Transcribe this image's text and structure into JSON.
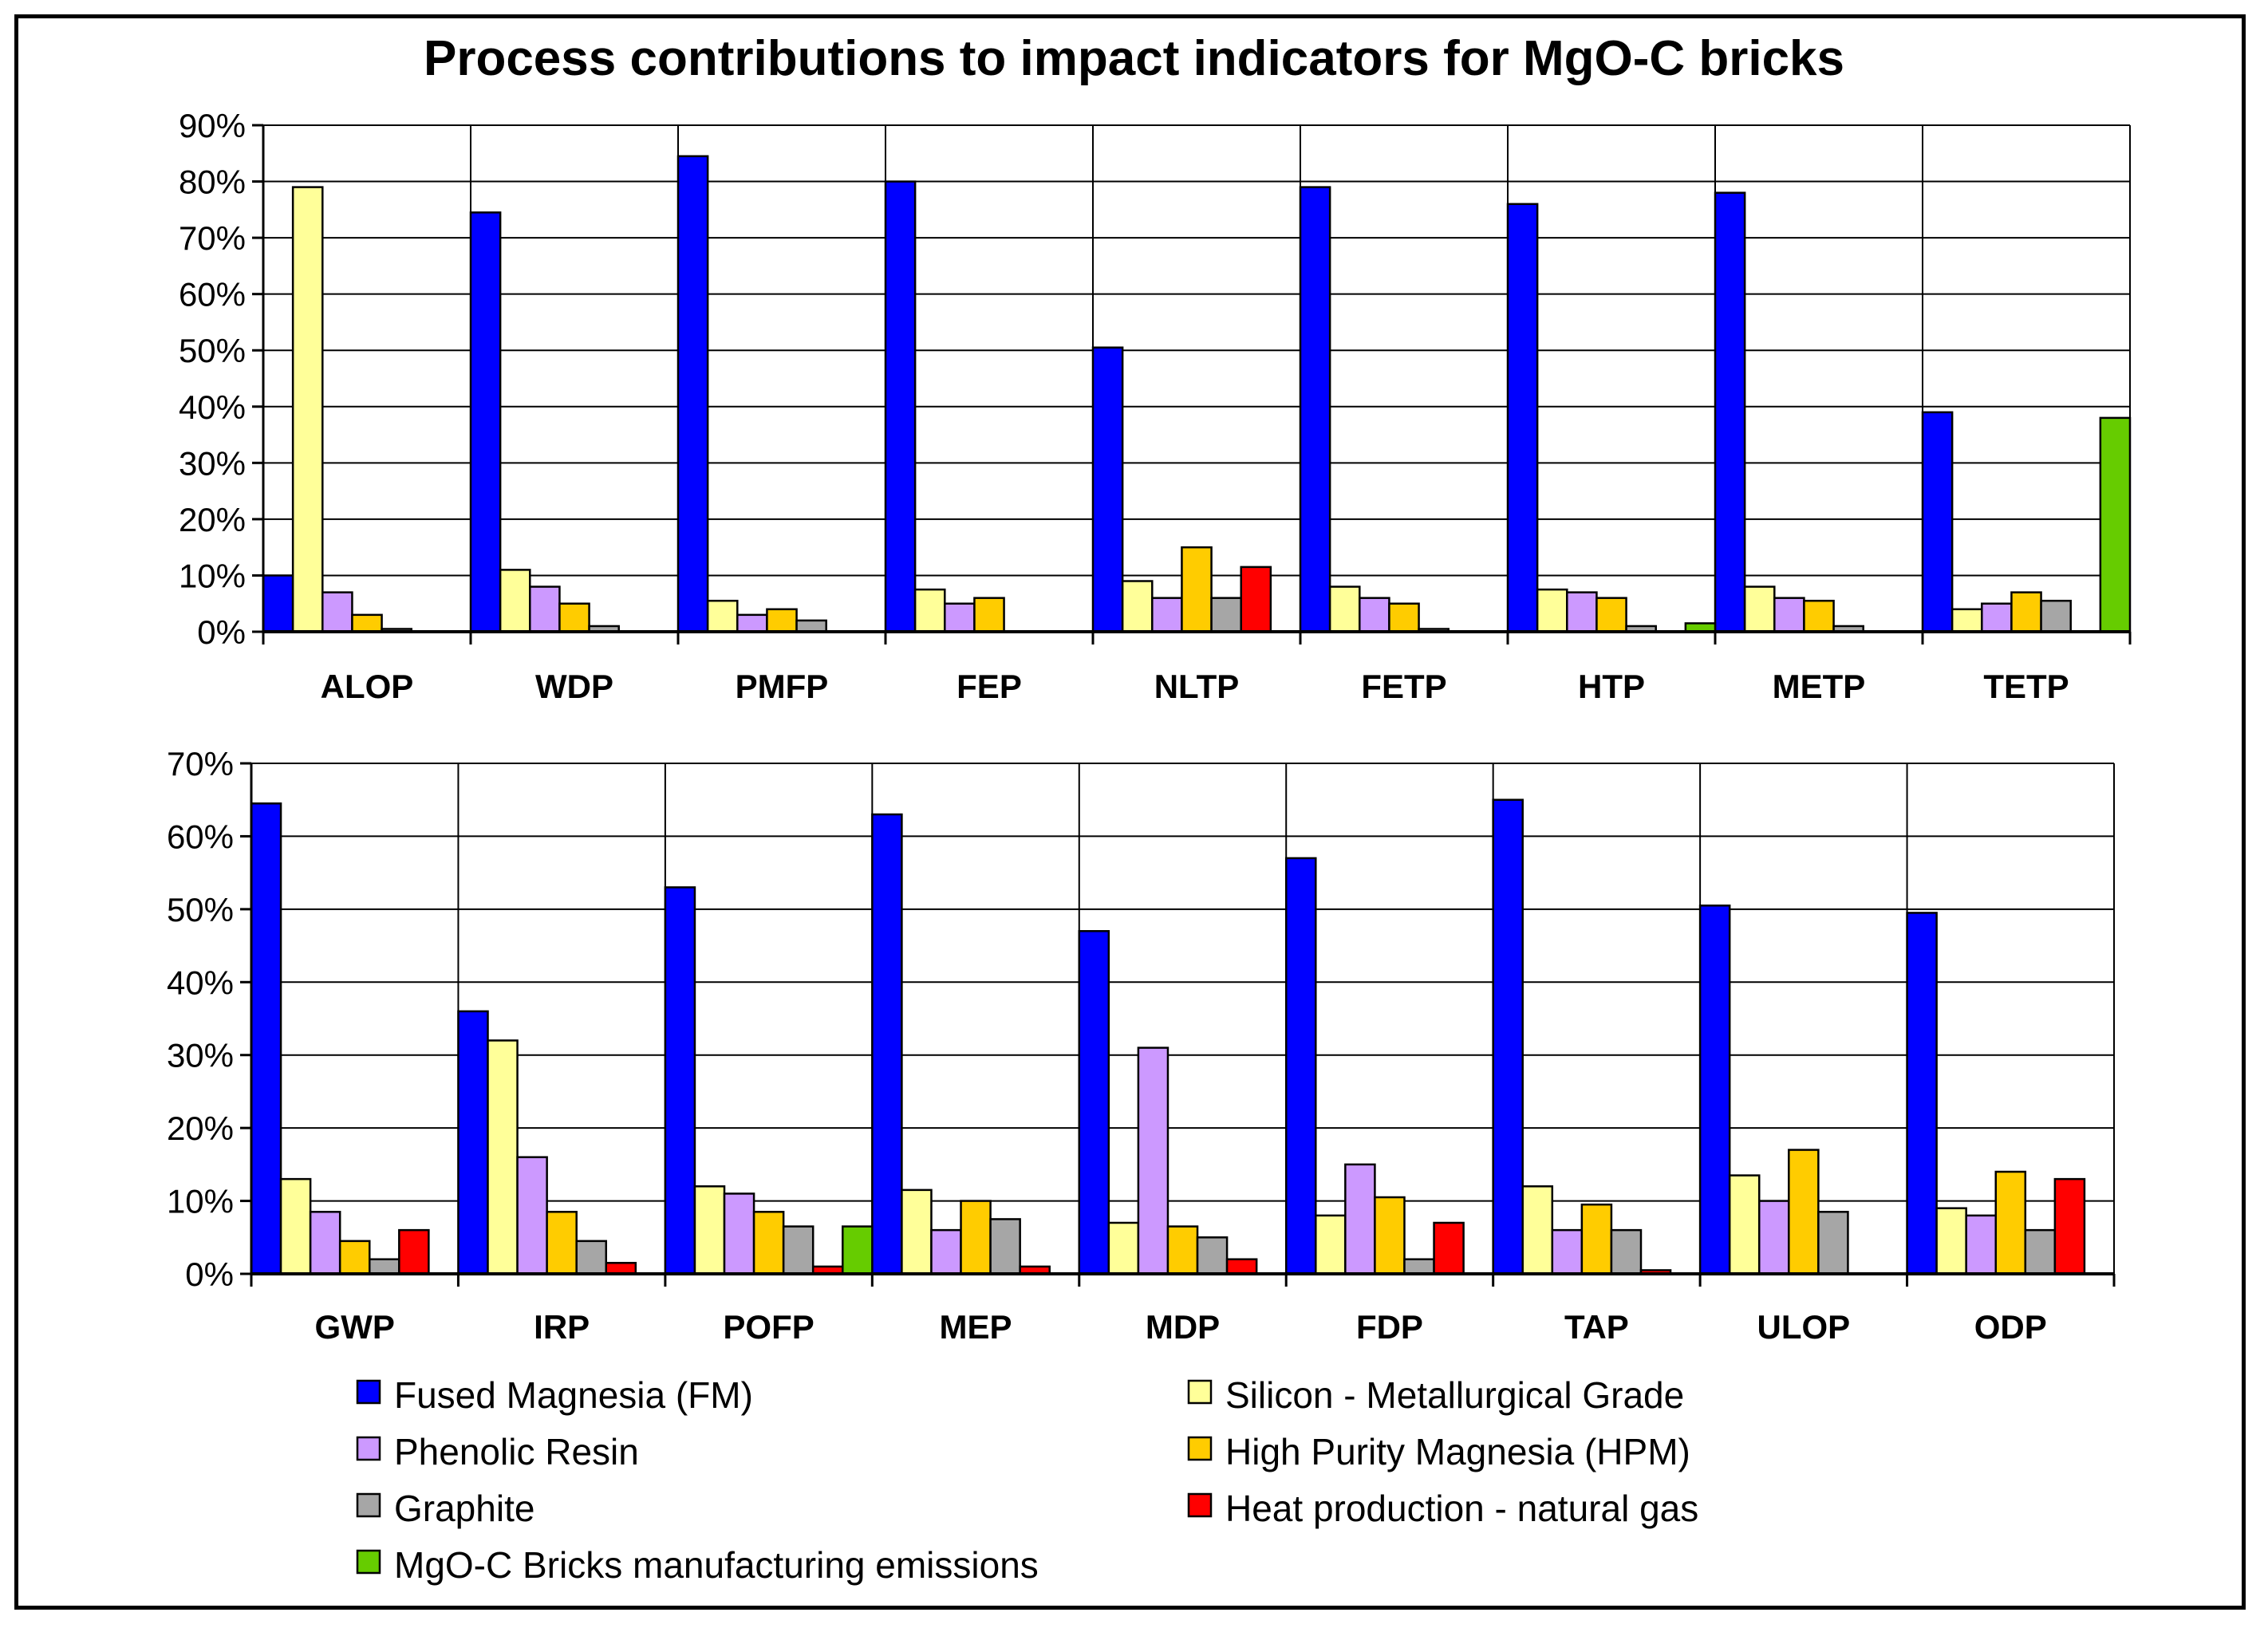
{
  "title": "Process contributions to impact indicators for MgO-C bricks",
  "series": [
    {
      "name": "Fused Magnesia (FM)",
      "color": "#0000ff"
    },
    {
      "name": "Silicon - Metallurgical Grade",
      "color": "#ffff99"
    },
    {
      "name": "Phenolic Resin",
      "color": "#cc99ff"
    },
    {
      "name": "High Purity Magnesia (HPM)",
      "color": "#ffcc00"
    },
    {
      "name": "Graphite",
      "color": "#a6a6a6"
    },
    {
      "name": "Heat production - natural gas",
      "color": "#ff0000"
    },
    {
      "name": "MgO-C Bricks manufacturing emissions",
      "color": "#66cc00"
    }
  ],
  "chart_data": [
    {
      "type": "bar",
      "title": "Process contributions to impact indicators for MgO-C bricks",
      "categories": [
        "ALOP",
        "WDP",
        "PMFP",
        "FEP",
        "NLTP",
        "FETP",
        "HTP",
        "METP",
        "TETP"
      ],
      "ylim": [
        0,
        90
      ],
      "yticks": [
        "0%",
        "10%",
        "20%",
        "30%",
        "40%",
        "50%",
        "60%",
        "70%",
        "80%",
        "90%"
      ],
      "grid": true,
      "series": [
        {
          "name": "Fused Magnesia (FM)",
          "values": [
            10,
            74.5,
            84.5,
            80,
            50.5,
            79,
            76,
            78,
            39
          ]
        },
        {
          "name": "Silicon - Metallurgical Grade",
          "values": [
            79,
            11,
            5.5,
            7.5,
            9,
            8,
            7.5,
            8,
            4
          ]
        },
        {
          "name": "Phenolic Resin",
          "values": [
            7,
            8,
            3,
            5,
            6,
            6,
            7,
            6,
            5
          ]
        },
        {
          "name": "High Purity Magnesia (HPM)",
          "values": [
            3,
            5,
            4,
            6,
            15,
            5,
            6,
            5.5,
            7
          ]
        },
        {
          "name": "Graphite",
          "values": [
            0.5,
            1,
            2,
            0,
            6,
            0.5,
            1,
            1,
            5.5
          ]
        },
        {
          "name": "Heat production - natural gas",
          "values": [
            0,
            0,
            0,
            0,
            11.5,
            0,
            0,
            0,
            0
          ]
        },
        {
          "name": "MgO-C Bricks manufacturing emissions",
          "values": [
            0,
            0,
            0,
            0,
            0,
            0,
            1.5,
            0,
            38
          ]
        }
      ]
    },
    {
      "type": "bar",
      "categories": [
        "GWP",
        "IRP",
        "POFP",
        "MEP",
        "MDP",
        "FDP",
        "TAP",
        "ULOP",
        "ODP"
      ],
      "ylim": [
        0,
        70
      ],
      "yticks": [
        "0%",
        "10%",
        "20%",
        "30%",
        "40%",
        "50%",
        "60%",
        "70%"
      ],
      "grid": true,
      "series": [
        {
          "name": "Fused Magnesia (FM)",
          "values": [
            64.5,
            36,
            53,
            63,
            47,
            57,
            65,
            50.5,
            49.5
          ]
        },
        {
          "name": "Silicon - Metallurgical Grade",
          "values": [
            13,
            32,
            12,
            11.5,
            7,
            8,
            12,
            13.5,
            9
          ]
        },
        {
          "name": "Phenolic Resin",
          "values": [
            8.5,
            16,
            11,
            6,
            31,
            15,
            6,
            10,
            8
          ]
        },
        {
          "name": "High Purity Magnesia (HPM)",
          "values": [
            4.5,
            8.5,
            8.5,
            10,
            6.5,
            10.5,
            9.5,
            17,
            14
          ]
        },
        {
          "name": "Graphite",
          "values": [
            2,
            4.5,
            6.5,
            7.5,
            5,
            2,
            6,
            8.5,
            6
          ]
        },
        {
          "name": "Heat production - natural gas",
          "values": [
            6,
            1.5,
            1,
            1,
            2,
            7,
            0.5,
            0,
            13
          ]
        },
        {
          "name": "MgO-C Bricks manufacturing emissions",
          "values": [
            0,
            0,
            6.5,
            0,
            0,
            0,
            0,
            0,
            0
          ]
        }
      ]
    }
  ]
}
